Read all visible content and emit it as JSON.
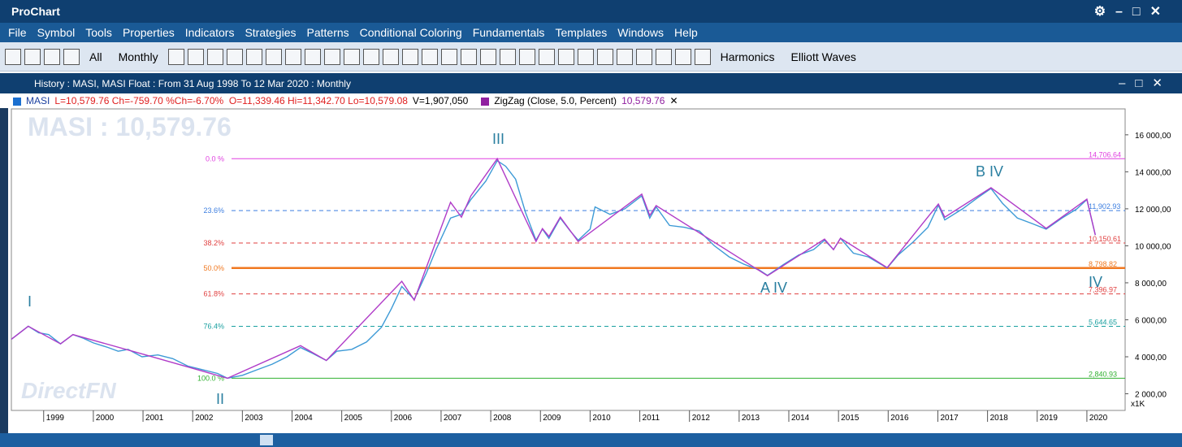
{
  "app": {
    "title": "ProChart",
    "menu": [
      "File",
      "Symbol",
      "Tools",
      "Properties",
      "Indicators",
      "Strategies",
      "Patterns",
      "Conditional Coloring",
      "Fundamentals",
      "Templates",
      "Windows",
      "Help"
    ]
  },
  "toolbar": {
    "items": [
      "All",
      "Monthly",
      "Harmonics",
      "Elliott Waves"
    ]
  },
  "window": {
    "title": "History : MASI, MASI Float : From 31 Aug 1998 To 12 Mar 2020 : Monthly"
  },
  "legend": {
    "ohlc": "L=10,579.76 Ch=-759.70 %Ch=-6.70%  O=11,339.46 Hi=11,342.70 Lo=10,579.08",
    "volume": "V=1,907,050",
    "indicator_value": "10,579.76"
  },
  "chart_data": {
    "type": "line",
    "watermark": "MASI : 10,579.76",
    "brand": "DirectFN",
    "y_unit_label": "x1K",
    "xlim": [
      1998.35,
      2020.77
    ],
    "xticks": [
      1999,
      2000,
      2001,
      2002,
      2003,
      2004,
      2005,
      2006,
      2007,
      2008,
      2009,
      2010,
      2011,
      2012,
      2013,
      2014,
      2015,
      2016,
      2017,
      2018,
      2019,
      2020
    ],
    "ylim": [
      1100,
      17400
    ],
    "yticks": [
      {
        "value": 2000,
        "label": "2 000,00"
      },
      {
        "value": 4000,
        "label": "4 000,00"
      },
      {
        "value": 6000,
        "label": "6 000,00"
      },
      {
        "value": 8000,
        "label": "8 000,00"
      },
      {
        "value": 10000,
        "label": "10 000,00"
      },
      {
        "value": 12000,
        "label": "12 000,00"
      },
      {
        "value": 14000,
        "label": "14 000,00"
      },
      {
        "value": 16000,
        "label": "16 000,00"
      }
    ],
    "series": [
      {
        "name": "MASI",
        "color": "#3d9ad6",
        "x": [
          1998.35,
          1998.69,
          1998.9,
          1999.1,
          1999.34,
          1999.59,
          1999.8,
          2000.0,
          2000.3,
          2000.5,
          2000.7,
          2000.98,
          2001.3,
          2001.6,
          2001.9,
          2002.2,
          2002.5,
          2002.7,
          2003.0,
          2003.3,
          2003.6,
          2003.9,
          2004.17,
          2004.4,
          2004.69,
          2004.9,
          2005.2,
          2005.5,
          2005.8,
          2006.0,
          2006.21,
          2006.46,
          2006.7,
          2006.9,
          2007.19,
          2007.41,
          2007.6,
          2007.9,
          2008.13,
          2008.3,
          2008.5,
          2008.7,
          2008.91,
          2009.04,
          2009.17,
          2009.4,
          2009.6,
          2009.76,
          2010.0,
          2010.1,
          2010.4,
          2010.7,
          2011.04,
          2011.2,
          2011.33,
          2011.6,
          2011.9,
          2012.2,
          2012.5,
          2012.8,
          2013.1,
          2013.4,
          2013.57,
          2013.9,
          2014.2,
          2014.5,
          2014.72,
          2014.9,
          2015.04,
          2015.3,
          2015.6,
          2015.98,
          2016.2,
          2016.5,
          2016.8,
          2017.01,
          2017.14,
          2017.5,
          2017.8,
          2018.07,
          2018.3,
          2018.6,
          2018.9,
          2019.18,
          2019.5,
          2019.8,
          2020.0,
          2020.17
        ],
        "values": [
          4950,
          5650,
          5300,
          5200,
          4700,
          5200,
          5000,
          4750,
          4500,
          4300,
          4400,
          4000,
          4100,
          3900,
          3500,
          3300,
          3100,
          2840,
          3000,
          3300,
          3600,
          4000,
          4500,
          4200,
          3800,
          4300,
          4400,
          4800,
          5600,
          6600,
          7800,
          7100,
          8500,
          9800,
          11500,
          11700,
          12500,
          13500,
          14600,
          14300,
          13600,
          11800,
          10300,
          10900,
          10400,
          11500,
          10800,
          10300,
          10900,
          12100,
          11700,
          12000,
          12700,
          11500,
          12100,
          11100,
          11000,
          10800,
          10000,
          9400,
          9000,
          8700,
          8400,
          9000,
          9500,
          9800,
          10300,
          9800,
          10400,
          9600,
          9400,
          8800,
          9500,
          10200,
          11000,
          12200,
          11400,
          12000,
          12600,
          13100,
          12300,
          11500,
          11200,
          10900,
          11500,
          12000,
          12500,
          10580
        ]
      },
      {
        "name": "ZigZag (Close, 5.0, Percent)",
        "color": "#b03cc8",
        "x": [
          1998.35,
          1998.69,
          1999.34,
          1999.59,
          2000.98,
          2002.7,
          2004.17,
          2004.69,
          2006.21,
          2006.46,
          2007.19,
          2007.41,
          2007.6,
          2008.13,
          2008.91,
          2009.04,
          2009.17,
          2009.4,
          2009.76,
          2011.04,
          2011.2,
          2011.33,
          2013.57,
          2014.72,
          2014.9,
          2015.04,
          2015.98,
          2017.01,
          2017.14,
          2018.07,
          2019.18,
          2020.0,
          2020.17
        ],
        "values": [
          4950,
          5650,
          4700,
          5200,
          4160,
          2840,
          4600,
          3800,
          8080,
          7060,
          12350,
          11550,
          12700,
          14706,
          10230,
          10930,
          10500,
          11550,
          10230,
          12790,
          11640,
          12170,
          8380,
          10360,
          9790,
          10410,
          8820,
          12260,
          11550,
          13140,
          10940,
          12520,
          10580
        ]
      }
    ],
    "fib_levels": [
      {
        "label": "0.0 %",
        "value": 14706.64,
        "value_label": "14,706.64",
        "color": "#e040e0",
        "dashed": false
      },
      {
        "label": "23.6%",
        "value": 11902.93,
        "value_label": "11,902.93",
        "color": "#3c7ee0",
        "dashed": true
      },
      {
        "label": "38.2%",
        "value": 10150.61,
        "value_label": "10,150.61",
        "color": "#e04040",
        "dashed": true
      },
      {
        "label": "50.0%",
        "value": 8798.82,
        "value_label": "8,798.82",
        "color": "#f07820",
        "dashed": false
      },
      {
        "label": "61.8%",
        "value": 7396.97,
        "value_label": "7,396.97",
        "color": "#e04040",
        "dashed": true
      },
      {
        "label": "76.4%",
        "value": 5644.65,
        "value_label": "5,644.65",
        "color": "#1aa0a0",
        "dashed": true
      },
      {
        "label": "100.0 %",
        "value": 2840.93,
        "value_label": "2,840.93",
        "color": "#30b030",
        "dashed": false
      }
    ],
    "annotations": [
      "I",
      "II",
      "III",
      "A IV",
      "B IV",
      "IV"
    ]
  }
}
